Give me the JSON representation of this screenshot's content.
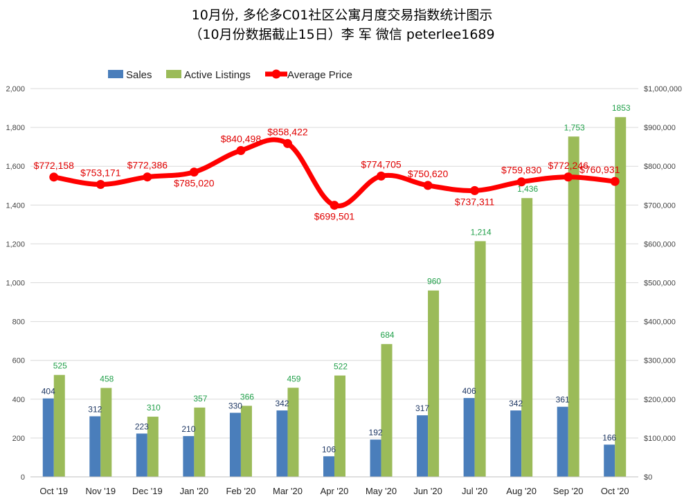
{
  "chart_data": {
    "type": "bar",
    "title_line1": "10月份, 多伦多C01社区公寓月度交易指数统计图示",
    "title_line2": "（10月份数据截止15日）李 军  微信  peterlee1689",
    "categories": [
      "Oct '19",
      "Nov '19",
      "Dec '19",
      "Jan '20",
      "Feb '20",
      "Mar '20",
      "Apr '20",
      "May '20",
      "Jun '20",
      "Jul '20",
      "Aug '20",
      "Sep '20",
      "Oct '20"
    ],
    "series": [
      {
        "name": "Sales",
        "type": "bar",
        "axis": "left",
        "color": "#4a7ebb",
        "values": [
          404,
          312,
          223,
          210,
          330,
          342,
          106,
          192,
          317,
          406,
          342,
          361,
          166
        ],
        "labels": [
          "404",
          "312",
          "223",
          "210",
          "330",
          "342",
          "106",
          "192",
          "317",
          "406",
          "342",
          "361",
          "166"
        ]
      },
      {
        "name": "Active Listings",
        "type": "bar",
        "axis": "left",
        "color": "#9bbb59",
        "values": [
          525,
          458,
          310,
          357,
          366,
          459,
          522,
          684,
          960,
          1214,
          1436,
          1753,
          1853
        ],
        "labels": [
          "525",
          "458",
          "310",
          "357",
          "366",
          "459",
          "522",
          "684",
          "960",
          "1,214",
          "1,436",
          "1,753",
          "1853"
        ]
      },
      {
        "name": "Average Price",
        "type": "line",
        "axis": "right",
        "color": "#ff0000",
        "values": [
          772158,
          753171,
          772386,
          785020,
          840498,
          858422,
          699501,
          774705,
          750620,
          737311,
          759830,
          772246,
          760931
        ],
        "labels": [
          "$772,158",
          "$753,171",
          "$772,386",
          "$785,020",
          "$840,498",
          "$858,422",
          "$699,501",
          "$774,705",
          "$750,620",
          "$737,311",
          "$759,830",
          "$772,246",
          "$760,931"
        ]
      }
    ],
    "y_left": {
      "min": 0,
      "max": 2000,
      "ticks": [
        0,
        200,
        400,
        600,
        800,
        1000,
        1200,
        1400,
        1600,
        1800,
        2000
      ],
      "tick_labels": [
        "0",
        "200",
        "400",
        "600",
        "800",
        "1,000",
        "1,200",
        "1,400",
        "1,600",
        "1,800",
        "2,000"
      ]
    },
    "y_right": {
      "min": 0,
      "max": 1000000,
      "ticks": [
        0,
        100000,
        200000,
        300000,
        400000,
        500000,
        600000,
        700000,
        800000,
        900000,
        1000000
      ],
      "tick_labels": [
        "$0",
        "$100,000",
        "$200,000",
        "$300,000",
        "$400,000",
        "$500,000",
        "$600,000",
        "$700,000",
        "$800,000",
        "$900,000",
        "$1,000,000"
      ]
    },
    "grid": true,
    "legend": "top"
  }
}
